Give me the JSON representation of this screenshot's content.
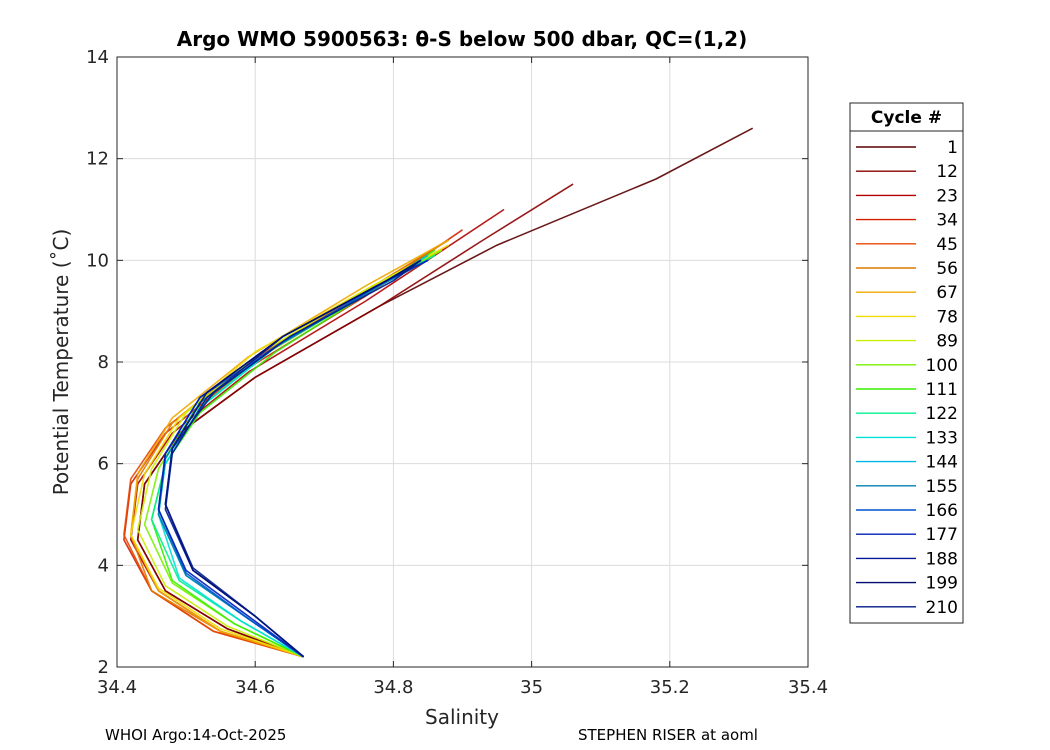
{
  "chart_data": {
    "type": "line",
    "title": "Argo WMO 5900563: θ-S below 500 dbar,  QC=(1,2)",
    "xlabel": "Salinity",
    "ylabel": "Potential Temperature (˚C)",
    "xlim": [
      34.4,
      35.4
    ],
    "ylim": [
      2,
      14
    ],
    "x_ticks": [
      "34.4",
      "34.6",
      "34.8",
      "35",
      "35.2",
      "35.4"
    ],
    "y_ticks": [
      "2",
      "4",
      "6",
      "8",
      "10",
      "12",
      "14"
    ],
    "grid": true,
    "legend_position": "right",
    "legend_title": "Cycle #",
    "series": [
      {
        "name": "1",
        "color": "#5a0000",
        "x": [
          34.67,
          34.56,
          34.47,
          34.43,
          34.44,
          34.49,
          34.6,
          34.78,
          34.95,
          35.18,
          35.32
        ],
        "y": [
          2.2,
          2.75,
          3.5,
          4.5,
          5.6,
          6.6,
          7.7,
          9.1,
          10.3,
          11.6,
          12.6
        ]
      },
      {
        "name": "12",
        "color": "#8b0000",
        "x": [
          34.67,
          34.56,
          34.47,
          34.43,
          34.44,
          34.49,
          34.6,
          34.78,
          34.93,
          35.06
        ],
        "y": [
          2.2,
          2.75,
          3.5,
          4.5,
          5.6,
          6.6,
          7.7,
          9.1,
          10.4,
          11.5
        ]
      },
      {
        "name": "23",
        "color": "#b00000",
        "x": [
          34.67,
          34.55,
          34.46,
          34.42,
          34.43,
          34.48,
          34.59,
          34.76,
          34.86,
          34.96
        ],
        "y": [
          2.2,
          2.7,
          3.5,
          4.5,
          5.6,
          6.6,
          7.8,
          9.2,
          10.1,
          11.0
        ]
      },
      {
        "name": "34",
        "color": "#d42000",
        "x": [
          34.67,
          34.54,
          34.45,
          34.41,
          34.42,
          34.47,
          34.58,
          34.76,
          34.9
        ],
        "y": [
          2.2,
          2.7,
          3.5,
          4.5,
          5.6,
          6.6,
          7.8,
          9.3,
          10.6
        ]
      },
      {
        "name": "45",
        "color": "#e84800",
        "x": [
          34.67,
          34.54,
          34.45,
          34.41,
          34.42,
          34.47,
          34.58,
          34.76,
          34.88
        ],
        "y": [
          2.2,
          2.7,
          3.5,
          4.6,
          5.7,
          6.7,
          7.9,
          9.4,
          10.4
        ]
      },
      {
        "name": "56",
        "color": "#e07800",
        "x": [
          34.67,
          34.55,
          34.45,
          34.42,
          34.43,
          34.48,
          34.59,
          34.76,
          34.88
        ],
        "y": [
          2.2,
          2.7,
          3.5,
          4.6,
          5.7,
          6.8,
          8.0,
          9.4,
          10.4
        ]
      },
      {
        "name": "67",
        "color": "#f0a800",
        "x": [
          34.67,
          34.55,
          34.46,
          34.42,
          34.43,
          34.48,
          34.59,
          34.76,
          34.88
        ],
        "y": [
          2.2,
          2.7,
          3.5,
          4.6,
          5.8,
          6.9,
          8.1,
          9.5,
          10.4
        ]
      },
      {
        "name": "78",
        "color": "#f0dc00",
        "x": [
          34.67,
          34.55,
          34.46,
          34.42,
          34.44,
          34.49,
          34.6,
          34.77,
          34.88
        ],
        "y": [
          2.2,
          2.75,
          3.55,
          4.6,
          5.8,
          6.9,
          8.2,
          9.5,
          10.3
        ]
      },
      {
        "name": "89",
        "color": "#c8f000",
        "x": [
          34.67,
          34.56,
          34.47,
          34.43,
          34.45,
          34.5,
          34.61,
          34.77,
          34.87
        ],
        "y": [
          2.2,
          2.8,
          3.6,
          4.7,
          5.9,
          7.0,
          8.2,
          9.5,
          10.2
        ]
      },
      {
        "name": "100",
        "color": "#7af000",
        "x": [
          34.67,
          34.57,
          34.48,
          34.44,
          34.46,
          34.51,
          34.62,
          34.78,
          34.87
        ],
        "y": [
          2.2,
          2.85,
          3.65,
          4.8,
          5.9,
          7.0,
          8.2,
          9.5,
          10.2
        ]
      },
      {
        "name": "111",
        "color": "#38f000",
        "x": [
          34.67,
          34.57,
          34.48,
          34.45,
          34.47,
          34.52,
          34.63,
          34.78,
          34.86
        ],
        "y": [
          2.2,
          2.85,
          3.7,
          4.9,
          6.0,
          7.0,
          8.2,
          9.5,
          10.2
        ]
      },
      {
        "name": "122",
        "color": "#00f090",
        "x": [
          34.67,
          34.58,
          34.49,
          34.45,
          34.47,
          34.52,
          34.63,
          34.78,
          34.86
        ],
        "y": [
          2.2,
          2.9,
          3.7,
          4.9,
          6.0,
          7.1,
          8.3,
          9.5,
          10.1
        ]
      },
      {
        "name": "133",
        "color": "#00e0d8",
        "x": [
          34.67,
          34.58,
          34.49,
          34.46,
          34.47,
          34.52,
          34.63,
          34.78,
          34.85
        ],
        "y": [
          2.2,
          2.9,
          3.75,
          5.0,
          6.0,
          7.1,
          8.3,
          9.5,
          10.1
        ]
      },
      {
        "name": "144",
        "color": "#00b8e8",
        "x": [
          34.67,
          34.59,
          34.5,
          34.46,
          34.47,
          34.52,
          34.63,
          34.78,
          34.85
        ],
        "y": [
          2.2,
          2.95,
          3.8,
          5.0,
          6.1,
          7.2,
          8.3,
          9.5,
          10.1
        ]
      },
      {
        "name": "155",
        "color": "#0080b0",
        "x": [
          34.67,
          34.59,
          34.5,
          34.46,
          34.47,
          34.52,
          34.63,
          34.78,
          34.85
        ],
        "y": [
          2.2,
          2.95,
          3.8,
          5.0,
          6.1,
          7.2,
          8.3,
          9.5,
          10.0
        ]
      },
      {
        "name": "166",
        "color": "#0050d0",
        "x": [
          34.67,
          34.59,
          34.5,
          34.46,
          34.47,
          34.52,
          34.64,
          34.79,
          34.85
        ],
        "y": [
          2.2,
          2.95,
          3.85,
          5.1,
          6.2,
          7.3,
          8.4,
          9.6,
          10.0
        ]
      },
      {
        "name": "177",
        "color": "#0020b8",
        "x": [
          34.67,
          34.59,
          34.5,
          34.46,
          34.47,
          34.52,
          34.64,
          34.79,
          34.85
        ],
        "y": [
          2.2,
          3.0,
          3.9,
          5.1,
          6.2,
          7.3,
          8.5,
          9.6,
          10.0
        ]
      },
      {
        "name": "188",
        "color": "#001898",
        "x": [
          34.67,
          34.6,
          34.51,
          34.47,
          34.48,
          34.53,
          34.64,
          34.79,
          34.84
        ],
        "y": [
          2.2,
          3.0,
          3.9,
          5.1,
          6.2,
          7.3,
          8.5,
          9.6,
          10.0
        ]
      },
      {
        "name": "199",
        "color": "#000c70",
        "x": [
          34.67,
          34.6,
          34.51,
          34.47,
          34.48,
          34.53,
          34.64,
          34.79,
          34.84
        ],
        "y": [
          2.2,
          3.0,
          3.9,
          5.2,
          6.3,
          7.4,
          8.5,
          9.6,
          10.0
        ]
      },
      {
        "name": "210",
        "color": "#001a88",
        "x": [
          34.67,
          34.6,
          34.51,
          34.47,
          34.48,
          34.54,
          34.65,
          34.8,
          34.84
        ],
        "y": [
          2.2,
          3.0,
          3.95,
          5.2,
          6.3,
          7.4,
          8.5,
          9.6,
          10.0
        ]
      }
    ]
  },
  "footer": {
    "left": "WHOI Argo:14-Oct-2025",
    "right": "STEPHEN RISER at aoml"
  }
}
